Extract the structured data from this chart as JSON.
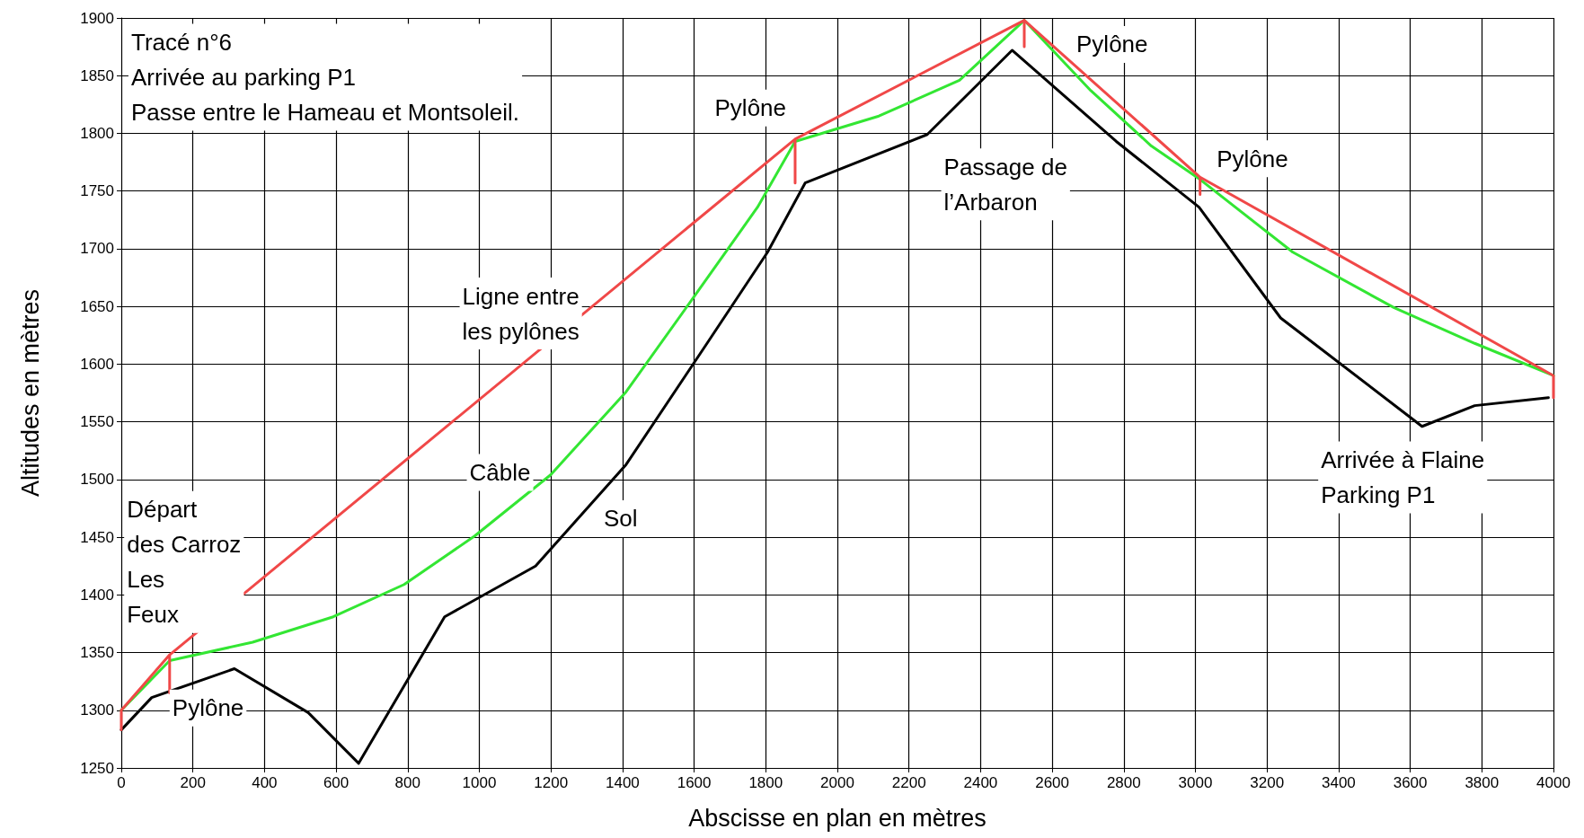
{
  "chart_data": {
    "type": "line",
    "xlabel": "Abscisse en plan en mètres",
    "ylabel": "Altitudes en mètres",
    "xlim": [
      0,
      4000
    ],
    "xticks": [
      0,
      200,
      400,
      600,
      800,
      1000,
      1200,
      1400,
      1600,
      1800,
      2000,
      2200,
      2400,
      2600,
      2800,
      3000,
      3200,
      3400,
      3600,
      3800,
      4000
    ],
    "ylim": [
      1250,
      1900
    ],
    "yticks": [
      1250,
      1300,
      1350,
      1400,
      1450,
      1500,
      1550,
      1600,
      1650,
      1700,
      1750,
      1800,
      1850,
      1900
    ],
    "grid": true,
    "series": [
      {
        "color": "#000000",
        "x": [
          0,
          85,
          316,
          522,
          663,
          903,
          1157,
          1410,
          1636,
          1805,
          1910,
          2251,
          2488,
          2779,
          3010,
          3238,
          3633,
          3780,
          3986
        ],
        "values": [
          1283,
          1311,
          1336,
          1298,
          1254,
          1381,
          1425,
          1513,
          1618,
          1697,
          1757,
          1799,
          1872,
          1793,
          1736,
          1640,
          1546,
          1564,
          1571
        ]
      },
      {
        "color": "#33e633",
        "x": [
          0,
          135,
          367,
          592,
          790,
          987,
          1199,
          1410,
          1608,
          1777,
          1882,
          2116,
          2341,
          2522,
          2708,
          2877,
          3013,
          3272,
          3554,
          3780,
          4000
        ],
        "values": [
          1300,
          1343,
          1359,
          1381,
          1409,
          1451,
          1504,
          1576,
          1662,
          1736,
          1793,
          1815,
          1846,
          1898,
          1837,
          1789,
          1760,
          1697,
          1649,
          1618,
          1590
        ]
      },
      {
        "color": "#f04848",
        "x": [
          0,
          0,
          135,
          135,
          135,
          1882,
          1882,
          1882,
          2522,
          2522,
          2522,
          3013,
          3013,
          3013,
          4000,
          4000
        ],
        "values": [
          1283,
          1300,
          1348,
          1315,
          1348,
          1795,
          1757,
          1795,
          1898,
          1875,
          1898,
          1762,
          1747,
          1762,
          1590,
          1571
        ]
      }
    ],
    "annotations": [
      "Tracé n°6\nArrivée au parking P1\nPasse entre le Hameau et Montsoleil.",
      "Pylône",
      "Départ\ndes Carroz\nLes\nFeux",
      "Ligne entre\nles pylônes",
      "Câble",
      "Sol",
      "Pylône",
      "Passage de\nl’Arbaron",
      "Pylône",
      "Pylône",
      "Arrivée à Flaine\nParking P1"
    ]
  }
}
